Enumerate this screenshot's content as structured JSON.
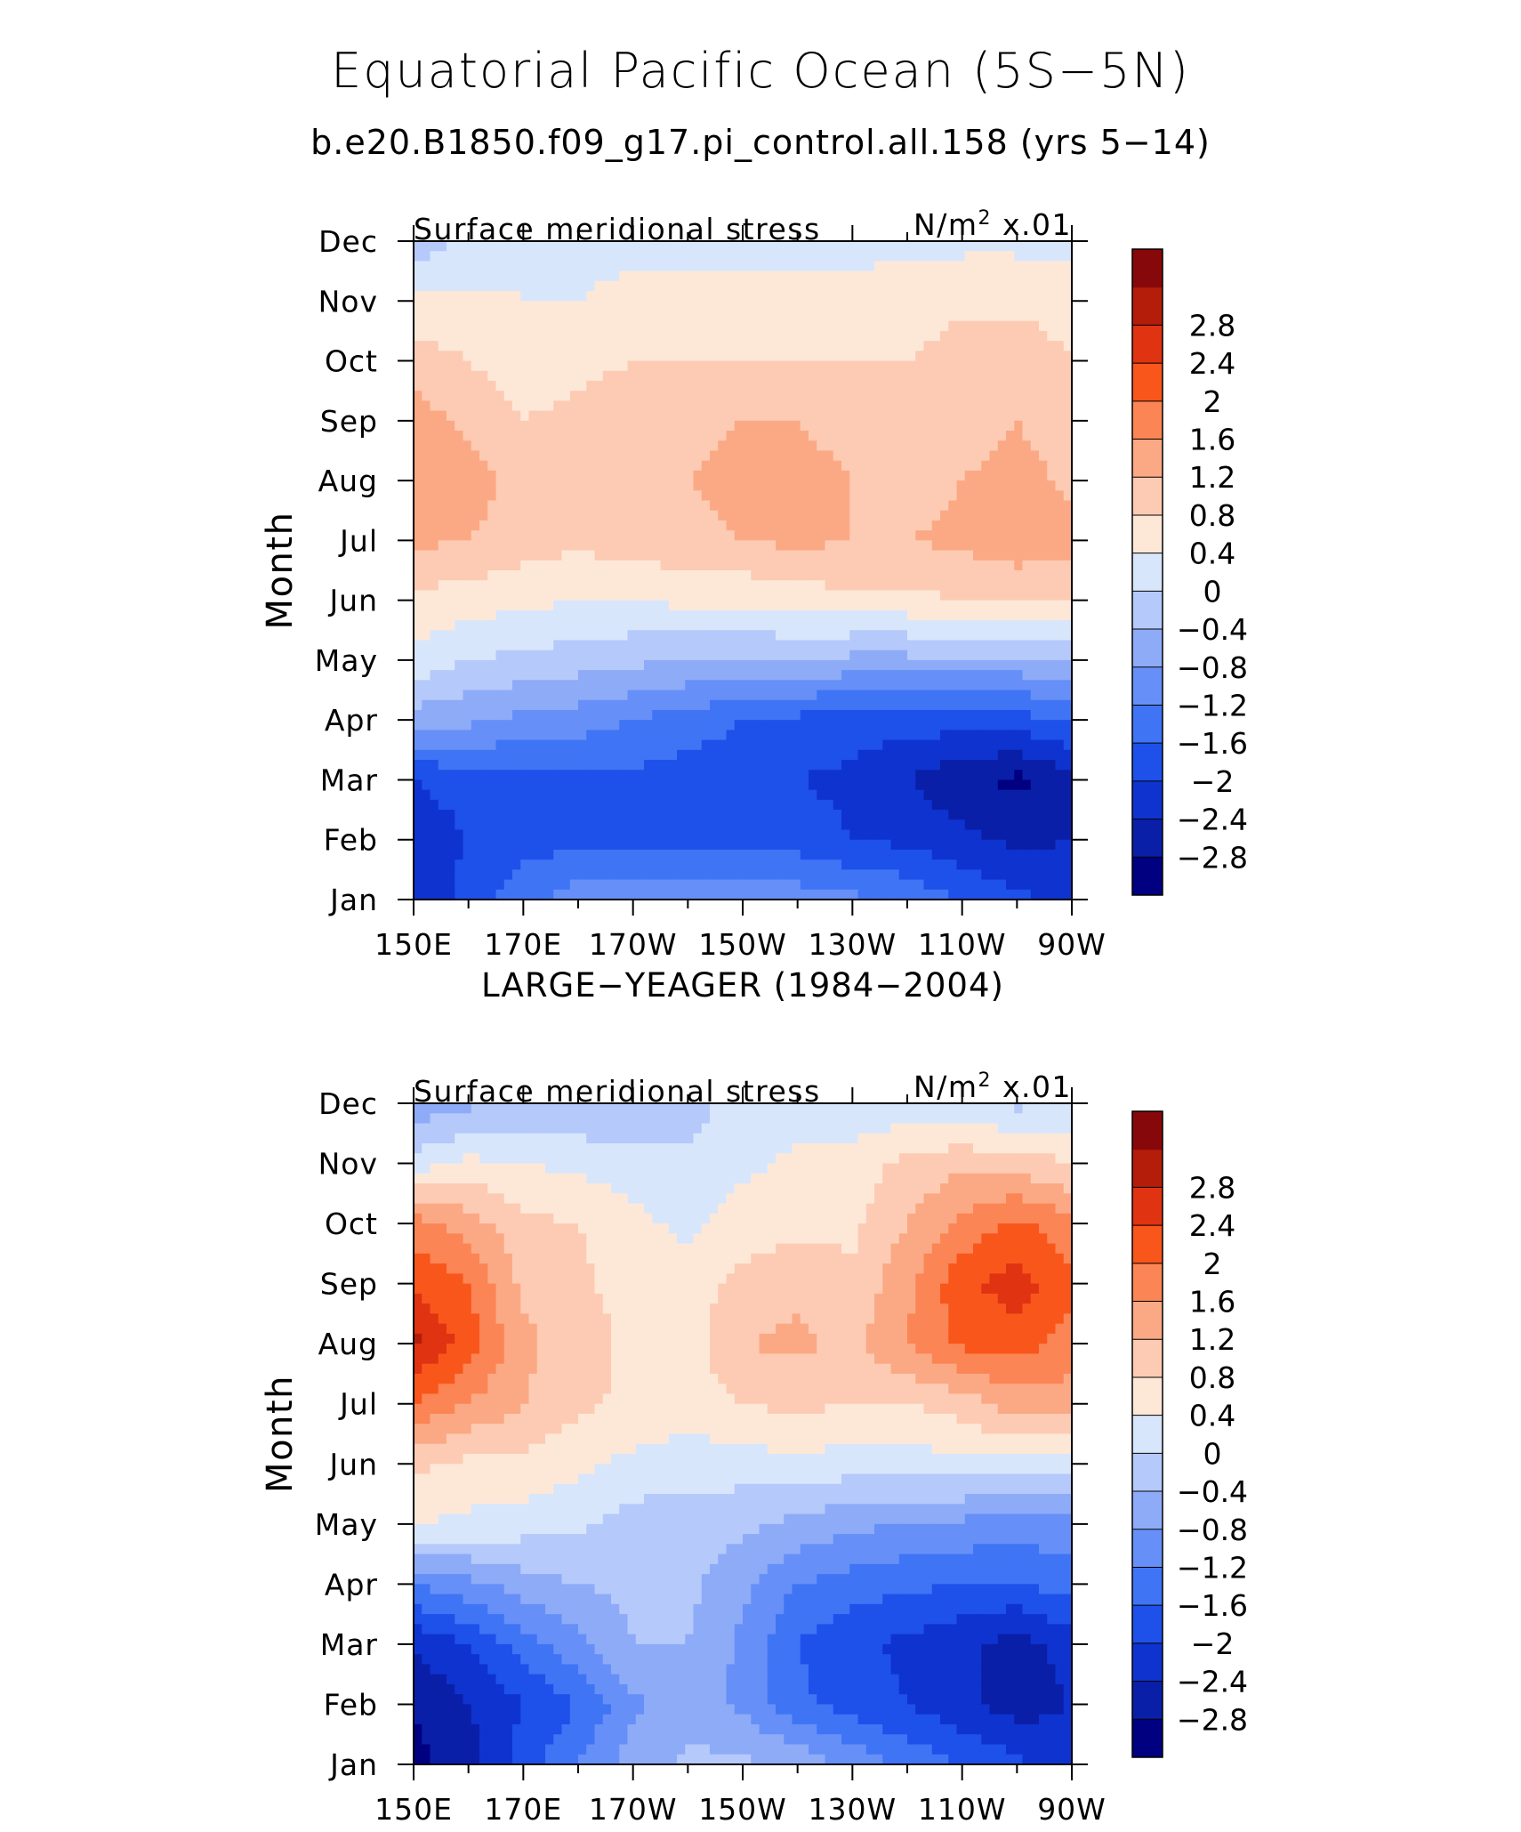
{
  "title": "Equatorial Pacific Ocean (5S−5N)",
  "case_label": "b.e20.B1850.f09_g17.pi_control.all.158 (yrs 5−14)",
  "colorbar": {
    "colors": [
      "#000080",
      "#0a1fa8",
      "#0f33cf",
      "#1e50ea",
      "#3f74f5",
      "#6690f7",
      "#8eabf8",
      "#b5c9fa",
      "#d8e6fc",
      "#fde8d8",
      "#fdcbb3",
      "#fba985",
      "#fb8555",
      "#f9561c",
      "#e03312",
      "#b51d0b",
      "#87080a"
    ],
    "labels": [
      "−2.8",
      "−2.4",
      "−2",
      "−1.6",
      "−1.2",
      "−0.8",
      "−0.4",
      "0",
      "0.4",
      "0.8",
      "1.2",
      "1.6",
      "2",
      "2.4",
      "2.8"
    ]
  },
  "chart_data": [
    {
      "type": "heatmap",
      "title": "",
      "left_label": "Surface meridional stress",
      "right_label_base": "N/m",
      "right_label_exp": "2",
      "right_label_tail": " x.01",
      "xlabel": "",
      "ylabel": "Month",
      "x_tick_labels": [
        "150E",
        "170E",
        "170W",
        "150W",
        "130W",
        "110W",
        "90W"
      ],
      "y_tick_labels": [
        "Jan",
        "Feb",
        "Mar",
        "Apr",
        "May",
        "Jun",
        "Jul",
        "Aug",
        "Sep",
        "Oct",
        "Nov",
        "Dec"
      ],
      "x": [
        150,
        160,
        170,
        180,
        190,
        200,
        210,
        220,
        230,
        240,
        250,
        260,
        270
      ],
      "values": [
        [
          -2.4,
          -1.8,
          -1.3,
          -1.0,
          -0.9,
          -0.9,
          -0.9,
          -1.0,
          -1.1,
          -1.3,
          -1.6,
          -1.9,
          -2.2
        ],
        [
          -2.3,
          -2.0,
          -1.8,
          -1.7,
          -1.7,
          -1.7,
          -1.7,
          -1.8,
          -2.0,
          -2.1,
          -2.3,
          -2.5,
          -2.4
        ],
        [
          -2.0,
          -1.8,
          -1.7,
          -1.7,
          -1.7,
          -1.8,
          -1.8,
          -2.0,
          -2.1,
          -2.4,
          -2.7,
          -2.9,
          -2.6
        ],
        [
          -0.6,
          -0.7,
          -0.9,
          -1.0,
          -1.2,
          -1.4,
          -1.6,
          -1.7,
          -1.8,
          -1.8,
          -1.8,
          -1.8,
          -1.5
        ],
        [
          0.3,
          0.0,
          -0.1,
          -0.2,
          -0.3,
          -0.4,
          -0.4,
          -0.4,
          -0.5,
          -0.5,
          -0.5,
          -0.5,
          -0.4
        ],
        [
          0.7,
          0.6,
          0.5,
          0.4,
          0.4,
          0.5,
          0.5,
          0.6,
          0.7,
          0.7,
          0.8,
          0.8,
          0.8
        ],
        [
          1.3,
          1.2,
          1.0,
          0.9,
          1.0,
          1.1,
          1.2,
          1.3,
          1.2,
          1.2,
          1.3,
          1.5,
          1.4
        ],
        [
          1.6,
          1.4,
          1.0,
          1.0,
          1.1,
          1.2,
          1.3,
          1.4,
          1.2,
          1.0,
          1.2,
          1.4,
          1.1
        ],
        [
          1.4,
          1.1,
          0.8,
          0.9,
          1.0,
          1.1,
          1.2,
          1.2,
          1.0,
          0.9,
          0.9,
          1.2,
          0.9
        ],
        [
          1.0,
          0.8,
          0.6,
          0.7,
          0.8,
          0.8,
          0.8,
          0.8,
          0.8,
          0.8,
          1.0,
          1.1,
          0.8
        ],
        [
          0.5,
          0.5,
          0.4,
          0.4,
          0.5,
          0.5,
          0.5,
          0.5,
          0.5,
          0.6,
          0.7,
          0.7,
          0.6
        ],
        [
          -0.3,
          0.1,
          0.3,
          0.3,
          0.3,
          0.3,
          0.3,
          0.3,
          0.3,
          0.3,
          0.3,
          0.3,
          0.3
        ]
      ]
    },
    {
      "type": "heatmap",
      "title": "LARGE−YEAGER (1984−2004)",
      "left_label": "Surface meridional stress",
      "right_label_base": "N/m",
      "right_label_exp": "2",
      "right_label_tail": " x.01",
      "xlabel": "",
      "ylabel": "Month",
      "x_tick_labels": [
        "150E",
        "170E",
        "170W",
        "150W",
        "130W",
        "110W",
        "90W"
      ],
      "y_tick_labels": [
        "Jan",
        "Feb",
        "Mar",
        "Apr",
        "May",
        "Jun",
        "Jul",
        "Aug",
        "Sep",
        "Oct",
        "Nov",
        "Dec"
      ],
      "x": [
        150,
        160,
        170,
        180,
        190,
        200,
        210,
        220,
        230,
        240,
        250,
        260,
        270
      ],
      "values": [
        [
          -2.9,
          -2.6,
          -1.8,
          -1.2,
          -0.6,
          -0.3,
          -0.3,
          -0.5,
          -0.9,
          -1.3,
          -1.6,
          -1.9,
          -2.2
        ],
        [
          -2.8,
          -2.4,
          -2.0,
          -1.6,
          -0.9,
          -0.6,
          -0.9,
          -1.5,
          -1.8,
          -2.0,
          -2.3,
          -2.6,
          -2.4
        ],
        [
          -2.3,
          -2.0,
          -1.4,
          -0.9,
          -0.4,
          -0.4,
          -0.9,
          -1.6,
          -1.9,
          -2.1,
          -2.3,
          -2.6,
          -2.2
        ],
        [
          -1.2,
          -0.9,
          -0.6,
          -0.4,
          -0.3,
          -0.3,
          -0.7,
          -1.2,
          -1.4,
          -1.5,
          -1.6,
          -1.6,
          -1.4
        ],
        [
          0.4,
          0.3,
          0.2,
          0.1,
          -0.2,
          -0.2,
          -0.3,
          -0.5,
          -0.7,
          -0.8,
          -0.9,
          -1.0,
          -0.9
        ],
        [
          0.9,
          0.7,
          0.7,
          0.5,
          0.3,
          0.2,
          0.2,
          0.3,
          0.2,
          0.2,
          0.3,
          0.3,
          0.3
        ],
        [
          2.0,
          1.6,
          1.2,
          0.9,
          0.7,
          0.6,
          0.8,
          0.9,
          0.8,
          0.8,
          1.0,
          1.4,
          1.4
        ],
        [
          2.9,
          2.2,
          1.3,
          1.0,
          0.7,
          0.6,
          1.2,
          1.3,
          1.1,
          1.6,
          2.1,
          2.2,
          1.8
        ],
        [
          2.3,
          2.0,
          1.1,
          0.9,
          0.6,
          0.6,
          0.9,
          1.1,
          0.9,
          1.5,
          2.3,
          2.6,
          2.1
        ],
        [
          1.8,
          1.4,
          0.9,
          0.8,
          0.5,
          0.3,
          0.6,
          0.7,
          0.7,
          1.2,
          1.7,
          2.1,
          1.7
        ],
        [
          0.2,
          0.5,
          0.4,
          0.3,
          0.2,
          0.1,
          0.3,
          0.5,
          0.6,
          0.9,
          1.1,
          1.0,
          0.8
        ],
        [
          -0.7,
          -0.5,
          -0.3,
          -0.4,
          -0.4,
          -0.2,
          0.2,
          0.2,
          0.1,
          0.1,
          0.0,
          -0.1,
          0.1
        ]
      ]
    }
  ]
}
